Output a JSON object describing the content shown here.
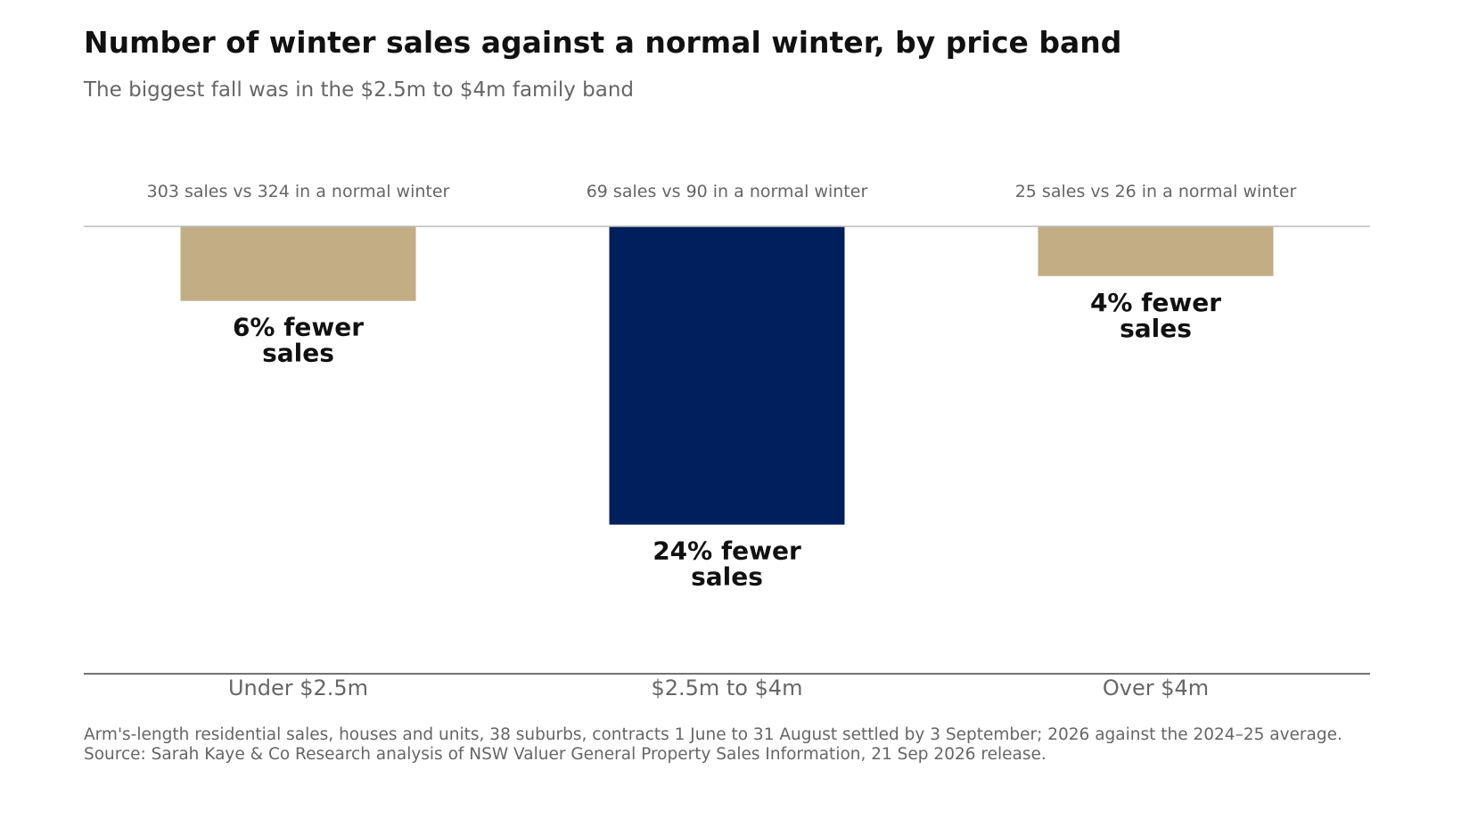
{
  "chart_data": {
    "type": "bar",
    "title": "Number of winter sales against a normal winter, by price band",
    "subtitle": "The biggest fall was in the $2.5m to $4m family band",
    "categories": [
      "Under $2.5m",
      "$2.5m to $4m",
      "Over $4m"
    ],
    "values": [
      -6,
      -24,
      -4
    ],
    "value_unit": "% change vs normal winter",
    "sales_this_winter": [
      303,
      69,
      25
    ],
    "sales_normal_winter": [
      324,
      90,
      26
    ],
    "top_labels": [
      "303 sales vs 324 in a normal winter",
      "69 sales vs 90 in a normal winter",
      "25 sales vs 26 in a normal winter"
    ],
    "bar_labels": [
      [
        "6% fewer",
        "sales"
      ],
      [
        "24% fewer",
        "sales"
      ],
      [
        "4% fewer",
        "sales"
      ]
    ],
    "colors": [
      "#c2ad85",
      "#001f5c",
      "#c2ad85"
    ],
    "highlight_index": 1,
    "ylim": [
      -36,
      0
    ],
    "grid": false,
    "legend": "none",
    "xlabel": "",
    "ylabel": ""
  },
  "footnote": {
    "line1": "Arm's-length residential sales, houses and units, 38 suburbs, contracts 1 June to 31 August settled by 3 September; 2026 against the 2024–25 average.",
    "line2": "Source: Sarah Kaye & Co Research analysis of NSW Valuer General Property Sales Information, 21 Sep 2026 release."
  }
}
